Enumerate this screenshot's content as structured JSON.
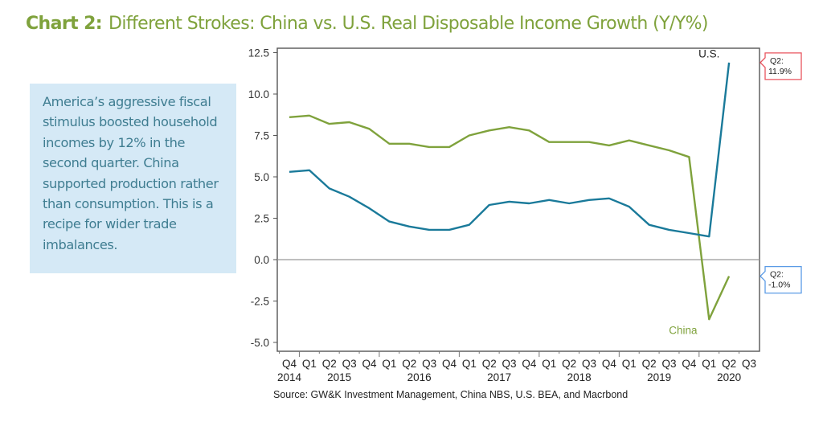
{
  "header": {
    "lead": "Chart 2:",
    "title": "Different Strokes: China vs. U.S. Real Disposable Income Growth (Y/Y%)"
  },
  "callout": {
    "text": "America’s aggressive fiscal stimulus boosted household incomes by 12% in the second quarter.  China supported production rather than consumption. This is a recipe for wider trade imbalances."
  },
  "source": "Source: GW&K Investment Management, China NBS, U.S. BEA, and Macrbond",
  "colors": {
    "title": "#7fa23c",
    "china": "#7fa23c",
    "us": "#1a7a9a",
    "us_callout_border": "#e8545e",
    "china_callout_border": "#5b9be6",
    "callout_bg": "#d5e9f6"
  },
  "chart_data": {
    "type": "line",
    "title": "Different Strokes: China vs. U.S. Real Disposable Income Growth (Y/Y%)",
    "xlabel": "",
    "ylabel": "",
    "ylim": [
      -5.0,
      12.5
    ],
    "yticks": [
      12.5,
      10.0,
      7.5,
      5.0,
      2.5,
      0.0,
      -2.5,
      -5.0
    ],
    "ytick_labels": [
      "12.5",
      "10.0",
      "7.5",
      "5.0",
      "2.5",
      "0.0",
      "-2.5",
      "-5.0"
    ],
    "grid": false,
    "zero_line": true,
    "x": [
      "Q4 2014",
      "Q1 2015",
      "Q2 2015",
      "Q3 2015",
      "Q4 2015",
      "Q1 2016",
      "Q2 2016",
      "Q3 2016",
      "Q4 2016",
      "Q1 2017",
      "Q2 2017",
      "Q3 2017",
      "Q4 2017",
      "Q1 2018",
      "Q2 2018",
      "Q3 2018",
      "Q4 2018",
      "Q1 2019",
      "Q2 2019",
      "Q3 2019",
      "Q4 2019",
      "Q1 2020",
      "Q2 2020",
      "Q3 2020"
    ],
    "quarter_labels": [
      "Q4",
      "Q1",
      "Q2",
      "Q3",
      "Q4",
      "Q1",
      "Q2",
      "Q3",
      "Q4",
      "Q1",
      "Q2",
      "Q3",
      "Q4",
      "Q1",
      "Q2",
      "Q3",
      "Q4",
      "Q1",
      "Q2",
      "Q3",
      "Q4",
      "Q1",
      "Q2",
      "Q3"
    ],
    "year_labels": [
      {
        "label": "2014",
        "index": 0
      },
      {
        "label": "2015",
        "index": 2.5
      },
      {
        "label": "2016",
        "index": 6.5
      },
      {
        "label": "2017",
        "index": 10.5
      },
      {
        "label": "2018",
        "index": 14.5
      },
      {
        "label": "2019",
        "index": 18.5
      },
      {
        "label": "2020",
        "index": 22
      }
    ],
    "series": [
      {
        "name": "China",
        "label": "China",
        "values": [
          8.6,
          8.7,
          8.2,
          8.3,
          7.9,
          7.0,
          7.0,
          6.8,
          6.8,
          7.5,
          7.8,
          8.0,
          7.8,
          7.1,
          7.1,
          7.1,
          6.9,
          7.2,
          6.9,
          6.6,
          6.2,
          -3.6,
          -1.0,
          null
        ],
        "label_at": {
          "index": 19.7,
          "value": -4.5
        },
        "annotation": {
          "text_line1": "Q2:",
          "text_line2": "-1.0%",
          "value": -1.0
        }
      },
      {
        "name": "U.S.",
        "label": "U.S.",
        "values": [
          5.3,
          5.4,
          4.3,
          3.8,
          3.1,
          2.3,
          2.0,
          1.8,
          1.8,
          2.1,
          3.3,
          3.5,
          3.4,
          3.6,
          3.4,
          3.6,
          3.7,
          3.2,
          2.1,
          1.8,
          1.6,
          1.4,
          11.9,
          null
        ],
        "label_at": {
          "index": 21.0,
          "value": 12.2
        },
        "annotation": {
          "text_line1": "Q2:",
          "text_line2": "11.9%",
          "value": 11.9
        }
      }
    ]
  }
}
